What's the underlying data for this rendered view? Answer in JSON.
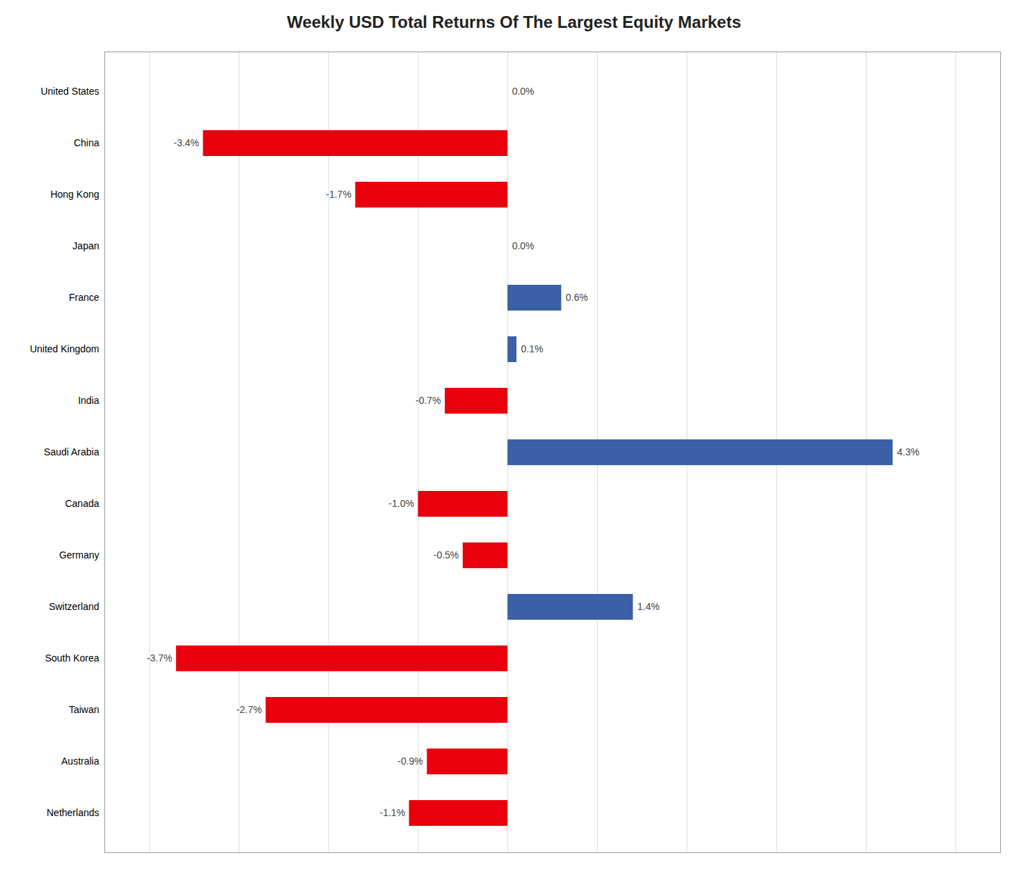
{
  "chart_data": {
    "type": "bar",
    "orientation": "horizontal",
    "title": "Weekly USD Total Returns Of The Largest Equity Markets",
    "categories": [
      "United States",
      "China",
      "Hong Kong",
      "Japan",
      "France",
      "United Kingdom",
      "India",
      "Saudi Arabia",
      "Canada",
      "Germany",
      "Switzerland",
      "South Korea",
      "Taiwan",
      "Australia",
      "Netherlands"
    ],
    "values": [
      0.0,
      -3.4,
      -1.7,
      0.0,
      0.6,
      0.1,
      -0.7,
      4.3,
      -1.0,
      -0.5,
      1.4,
      -3.7,
      -2.7,
      -0.9,
      -1.1
    ],
    "value_labels": [
      "0.0%",
      "-3.4%",
      "-1.7%",
      "0.0%",
      "0.6%",
      "0.1%",
      "-0.7%",
      "4.3%",
      "-1.0%",
      "-0.5%",
      "1.4%",
      "-3.7%",
      "-2.7%",
      "-0.9%",
      "-1.1%"
    ],
    "colors": [
      "#e8000d",
      "#e8000d",
      "#e8000d",
      "#e8000d",
      "#3d5fa8",
      "#3d5fa8",
      "#e8000d",
      "#3d5fa8",
      "#e8000d",
      "#e8000d",
      "#3d5fa8",
      "#e8000d",
      "#e8000d",
      "#e8000d",
      "#e8000d"
    ],
    "xlim": [
      -4.5,
      5.5
    ],
    "xticks": [
      -4,
      -3,
      -2,
      -1,
      0,
      1,
      2,
      3,
      4,
      5
    ],
    "grid": true,
    "data_labels": true,
    "tick_labels": "y"
  }
}
